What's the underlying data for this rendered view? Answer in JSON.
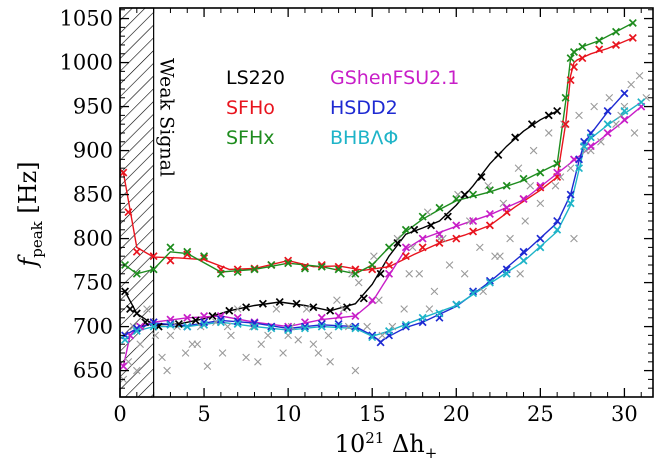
{
  "chart_data": {
    "type": "scatter",
    "xlabel": "10²¹ Δh₊",
    "ylabel": "f_peak [Hz]",
    "xlim": [
      0,
      31.7
    ],
    "ylim": [
      620,
      1062
    ],
    "xticks": [
      0,
      5,
      10,
      15,
      20,
      25,
      30
    ],
    "yticks": [
      650,
      700,
      750,
      800,
      850,
      900,
      950,
      1000,
      1050
    ],
    "xtick_labels": [
      "0",
      "5",
      "10",
      "15",
      "20",
      "25",
      "30"
    ],
    "ytick_labels": [
      "650",
      "700",
      "750",
      "800",
      "850",
      "900",
      "950",
      "1000",
      "1050"
    ],
    "weak_signal_region": {
      "x_max": 2.0,
      "label": "Weak Signal"
    },
    "grid": false,
    "legend_placement": "upper-center",
    "series": [
      {
        "name": "LS220",
        "color": "#000000",
        "x": [
          0.3,
          0.6,
          1.0,
          1.5,
          2.3,
          3.5,
          4.5,
          5.5,
          6.5,
          7.5,
          8.5,
          9.5,
          10.5,
          11.5,
          12.5,
          13.5,
          14.5,
          15.5,
          16.5,
          17.5,
          18.5,
          19.5,
          20.5,
          21.5,
          22.5,
          23.5,
          24.5,
          25.5,
          26.0
        ],
        "y": [
          740,
          720,
          715,
          705,
          700,
          703,
          707,
          712,
          718,
          722,
          726,
          728,
          726,
          722,
          718,
          722,
          732,
          760,
          795,
          810,
          815,
          825,
          850,
          870,
          895,
          915,
          930,
          940,
          945
        ]
      },
      {
        "name": "SFHo",
        "color": "#e8141e",
        "x": [
          0.2,
          0.5,
          1.0,
          2.0,
          3.0,
          4.0,
          5.0,
          6.0,
          7.0,
          8.0,
          9.0,
          10.0,
          11.0,
          12.0,
          13.0,
          14.0,
          15.0,
          16.0,
          17.0,
          18.0,
          19.0,
          20.0,
          21.0,
          22.0,
          23.0,
          24.0,
          25.0,
          26.0,
          26.5,
          26.8,
          27.0,
          27.5,
          28.5,
          29.5,
          30.5
        ],
        "y": [
          875,
          830,
          785,
          780,
          775,
          782,
          778,
          765,
          765,
          766,
          770,
          775,
          768,
          770,
          768,
          765,
          765,
          770,
          780,
          790,
          795,
          800,
          808,
          815,
          830,
          845,
          858,
          870,
          930,
          980,
          995,
          1005,
          1015,
          1020,
          1028
        ]
      },
      {
        "name": "SFHx",
        "color": "#1e8c1e",
        "x": [
          0.3,
          1.0,
          2.0,
          3.0,
          4.0,
          5.0,
          6.0,
          7.0,
          8.0,
          9.0,
          10.0,
          11.0,
          12.0,
          13.0,
          14.0,
          15.0,
          16.0,
          17.0,
          18.0,
          19.0,
          20.0,
          21.0,
          22.0,
          23.0,
          24.0,
          25.0,
          26.0,
          26.5,
          26.8,
          27.0,
          27.5,
          28.5,
          29.5,
          30.5
        ],
        "y": [
          770,
          760,
          765,
          790,
          785,
          780,
          760,
          762,
          765,
          770,
          772,
          766,
          768,
          765,
          760,
          770,
          790,
          810,
          825,
          835,
          845,
          850,
          855,
          860,
          868,
          875,
          885,
          960,
          1005,
          1012,
          1018,
          1025,
          1035,
          1045
        ]
      },
      {
        "name": "GShenFSU2.1",
        "color": "#c81ec8",
        "x": [
          0.2,
          0.6,
          1.2,
          2.0,
          3.0,
          4.0,
          5.0,
          6.0,
          7.0,
          8.0,
          9.0,
          10.0,
          11.0,
          12.0,
          13.0,
          14.0,
          15.0,
          16.0,
          17.0,
          18.0,
          19.0,
          20.0,
          21.0,
          22.0,
          23.0,
          24.0,
          25.0,
          26.0,
          27.0,
          28.0,
          29.0,
          30.0,
          31.0
        ],
        "y": [
          655,
          690,
          700,
          705,
          708,
          710,
          712,
          712,
          710,
          705,
          700,
          700,
          705,
          710,
          712,
          712,
          730,
          760,
          790,
          800,
          805,
          815,
          820,
          828,
          835,
          845,
          860,
          875,
          890,
          905,
          920,
          935,
          950
        ]
      },
      {
        "name": "HSDD2",
        "color": "#1e2ad2",
        "x": [
          0.3,
          1.0,
          2.0,
          3.0,
          4.0,
          5.0,
          6.0,
          7.0,
          8.0,
          9.0,
          10.0,
          11.0,
          12.0,
          13.0,
          14.0,
          15.0,
          15.5,
          16.0,
          17.0,
          18.0,
          19.0,
          20.0,
          21.0,
          22.0,
          23.0,
          24.0,
          25.0,
          26.0,
          26.8,
          27.3,
          27.6,
          28.0,
          29.0,
          30.0
        ],
        "y": [
          690,
          698,
          705,
          703,
          700,
          705,
          708,
          706,
          704,
          700,
          698,
          700,
          703,
          703,
          700,
          690,
          682,
          690,
          700,
          705,
          710,
          725,
          740,
          752,
          765,
          785,
          800,
          820,
          850,
          890,
          910,
          920,
          945,
          965
        ]
      },
      {
        "name": "BHBΛΦ",
        "color": "#1eb4c8",
        "x": [
          0.3,
          1.0,
          2.0,
          3.0,
          4.0,
          5.0,
          6.0,
          7.0,
          8.0,
          9.0,
          10.0,
          11.0,
          12.0,
          13.0,
          14.0,
          15.0,
          16.0,
          17.0,
          18.0,
          19.0,
          20.0,
          21.0,
          22.0,
          23.0,
          24.0,
          25.0,
          26.0,
          26.8,
          27.3,
          27.6,
          28.0,
          29.0,
          30.0,
          31.0
        ],
        "y": [
          685,
          695,
          700,
          702,
          700,
          702,
          705,
          703,
          700,
          698,
          696,
          698,
          700,
          700,
          698,
          688,
          695,
          702,
          710,
          715,
          725,
          738,
          750,
          760,
          775,
          790,
          810,
          840,
          880,
          905,
          915,
          930,
          945,
          955
        ]
      },
      {
        "name": "",
        "color": "#9a9a9a",
        "x": [
          0.2,
          0.5,
          0.8,
          1.2,
          1.6,
          2.1,
          2.5,
          3.0,
          3.4,
          3.9,
          4.3,
          4.8,
          5.2,
          5.7,
          6.1,
          6.6,
          7.0,
          7.5,
          7.9,
          8.4,
          8.8,
          9.3,
          9.7,
          10.2,
          10.6,
          11.1,
          11.5,
          12.0,
          12.4,
          12.9,
          13.3,
          13.8,
          14.2,
          14.7,
          15.1,
          15.6,
          16.0,
          16.5,
          16.9,
          17.4,
          17.8,
          18.3,
          18.7,
          19.2,
          19.6,
          20.1,
          20.5,
          21.0,
          21.4,
          21.9,
          22.3,
          22.8,
          23.2,
          23.7,
          24.1,
          24.6,
          25.0,
          25.5,
          25.9,
          26.4,
          26.8,
          27.3,
          27.7,
          28.2,
          28.6,
          29.1,
          29.5,
          30.0,
          30.4,
          30.9,
          31.3,
          1.0,
          2.8,
          4.6,
          6.4,
          8.2,
          10.0,
          11.8,
          13.6,
          15.4,
          17.2,
          19.0,
          20.8,
          22.6,
          24.4,
          26.2,
          28.0,
          29.8,
          12.5,
          14.0,
          16.2,
          18.4,
          21.6,
          23.8,
          27.0,
          30.6
        ],
        "y": [
          640,
          660,
          700,
          680,
          720,
          690,
          665,
          690,
          700,
          670,
          680,
          700,
          655,
          705,
          670,
          690,
          720,
          665,
          700,
          680,
          690,
          720,
          670,
          700,
          685,
          720,
          680,
          700,
          690,
          730,
          720,
          760,
          750,
          700,
          780,
          690,
          760,
          800,
          720,
          790,
          760,
          830,
          740,
          800,
          770,
          850,
          760,
          820,
          790,
          860,
          780,
          840,
          800,
          880,
          820,
          900,
          840,
          920,
          860,
          930,
          880,
          940,
          900,
          950,
          910,
          960,
          930,
          950,
          975,
          985,
          960,
          650,
          650,
          680,
          700,
          660,
          690,
          670,
          700,
          730,
          760,
          800,
          820,
          780,
          860,
          870,
          900,
          940,
          660,
          650,
          700,
          720,
          740,
          760,
          800,
          920
        ]
      }
    ],
    "fits": [
      {
        "name": "LS220",
        "color": "#000000",
        "x": [
          0.3,
          1.0,
          2.0,
          3.5,
          5.0,
          6.5,
          8.0,
          9.5,
          11.0,
          12.5,
          14.0,
          15.0,
          16.0,
          17.0,
          18.0,
          19.0,
          20.0,
          21.0,
          22.0,
          23.0,
          24.0,
          25.0,
          26.0
        ],
        "y": [
          740,
          715,
          702,
          703,
          709,
          718,
          724,
          728,
          724,
          718,
          726,
          748,
          780,
          805,
          812,
          820,
          838,
          860,
          885,
          905,
          922,
          935,
          945
        ]
      },
      {
        "name": "SFHo",
        "color": "#e8141e",
        "x": [
          0.2,
          1.0,
          2.0,
          3.5,
          5.0,
          6.5,
          8.0,
          10.0,
          11.5,
          13.0,
          14.5,
          16.0,
          17.5,
          19.0,
          20.5,
          22.0,
          23.5,
          25.0,
          26.0,
          26.5,
          26.8,
          27.0,
          27.2,
          28.0,
          29.0,
          30.5
        ],
        "y": [
          875,
          790,
          779,
          778,
          776,
          765,
          766,
          775,
          768,
          769,
          764,
          768,
          782,
          795,
          804,
          815,
          836,
          855,
          870,
          930,
          985,
          1000,
          1003,
          1010,
          1016,
          1028
        ]
      },
      {
        "name": "SFHx",
        "color": "#1e8c1e",
        "x": [
          0.3,
          1.0,
          2.0,
          3.0,
          4.0,
          6.0,
          8.0,
          10.0,
          12.0,
          14.0,
          15.0,
          16.0,
          17.0,
          18.0,
          19.0,
          20.0,
          22.0,
          24.0,
          26.0,
          26.5,
          26.8,
          27.0,
          27.5,
          28.5,
          30.5
        ],
        "y": [
          770,
          760,
          765,
          785,
          783,
          762,
          765,
          772,
          768,
          760,
          770,
          790,
          808,
          822,
          833,
          843,
          853,
          866,
          885,
          955,
          1005,
          1012,
          1018,
          1025,
          1045
        ]
      },
      {
        "name": "GShenFSU2.1",
        "color": "#c81ec8",
        "x": [
          0.2,
          0.6,
          1.2,
          2.0,
          4.0,
          6.0,
          8.0,
          10.0,
          12.0,
          14.0,
          15.0,
          16.0,
          17.0,
          18.0,
          20.0,
          22.0,
          24.0,
          26.0,
          28.0,
          30.0,
          31.0
        ],
        "y": [
          655,
          690,
          700,
          705,
          710,
          712,
          705,
          700,
          708,
          712,
          728,
          758,
          788,
          800,
          814,
          827,
          844,
          874,
          904,
          934,
          950
        ]
      },
      {
        "name": "HSDD2",
        "color": "#1e2ad2",
        "x": [
          0.3,
          1.0,
          2.0,
          4.0,
          6.0,
          8.0,
          10.0,
          12.0,
          14.0,
          15.0,
          15.5,
          16.0,
          17.0,
          18.0,
          20.0,
          22.0,
          24.0,
          26.0,
          26.8,
          27.3,
          27.6,
          28.0,
          29.0,
          30.0
        ],
        "y": [
          690,
          698,
          704,
          701,
          707,
          704,
          698,
          702,
          700,
          690,
          683,
          689,
          699,
          705,
          723,
          751,
          783,
          818,
          850,
          888,
          908,
          919,
          944,
          965
        ]
      },
      {
        "name": "BHBΛΦ",
        "color": "#1eb4c8",
        "x": [
          0.3,
          1.0,
          2.0,
          4.0,
          6.0,
          8.0,
          10.0,
          12.0,
          14.0,
          15.0,
          16.0,
          18.0,
          20.0,
          22.0,
          24.0,
          26.0,
          26.8,
          27.3,
          27.6,
          28.0,
          29.0,
          31.0
        ],
        "y": [
          685,
          695,
          700,
          700,
          705,
          700,
          696,
          700,
          698,
          689,
          695,
          710,
          724,
          749,
          774,
          808,
          838,
          878,
          903,
          914,
          929,
          955
        ]
      }
    ]
  },
  "legend": {
    "entries": [
      {
        "label": "LS220",
        "color": "#000000"
      },
      {
        "label": "SFHo",
        "color": "#e8141e"
      },
      {
        "label": "SFHx",
        "color": "#1e8c1e"
      },
      {
        "label": "GShenFSU2.1",
        "color": "#c81ec8"
      },
      {
        "label": "HSDD2",
        "color": "#1e2ad2"
      },
      {
        "label": "BHBΛΦ",
        "color": "#1eb4c8"
      }
    ]
  }
}
